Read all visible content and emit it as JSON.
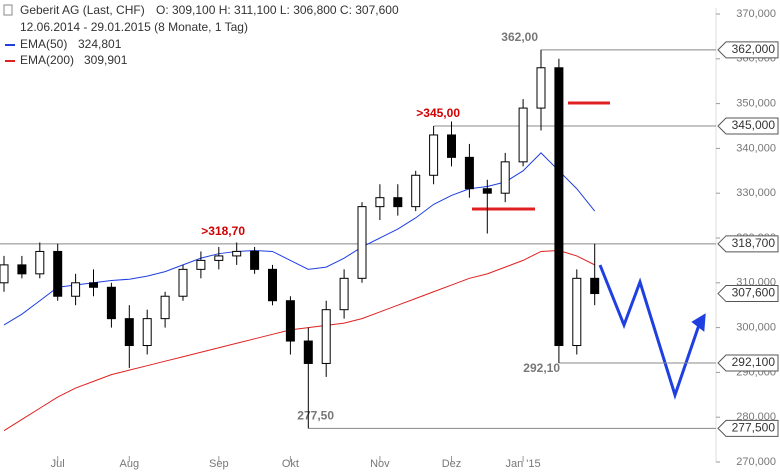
{
  "chart_data": {
    "type": "candlestick",
    "title": "Geberit AG (Last, CHF)",
    "ohlc_summary": "O: 309,100  H: 311,100  L: 306,800  C: 307,600",
    "subtitle": "12.06.2014 - 29.01.2015 (8 Monate, 1 Tag)",
    "categories": [
      null,
      null,
      null,
      "Jul",
      null,
      null,
      null,
      "Aug",
      null,
      null,
      null,
      null,
      "Sep",
      null,
      null,
      null,
      "Okt",
      null,
      null,
      null,
      null,
      "Nov",
      null,
      null,
      null,
      "Dez",
      null,
      null,
      null,
      "Jan '15",
      null,
      null,
      null,
      null
    ],
    "open": [
      310,
      314,
      312,
      317,
      307,
      310,
      309,
      302,
      296,
      302,
      307,
      313,
      315,
      316,
      317,
      313,
      306,
      297,
      292,
      304,
      311,
      327,
      329,
      327,
      334,
      343,
      338,
      331,
      330,
      337,
      349,
      358,
      296,
      311
    ],
    "high": [
      316,
      316,
      319,
      318.7,
      312,
      313,
      310,
      305,
      304,
      308,
      314,
      317,
      318,
      319,
      318,
      314,
      307,
      300,
      306,
      313,
      328,
      332,
      332,
      335,
      345,
      346,
      341,
      333,
      339,
      351,
      362,
      360,
      313,
      318.7
    ],
    "low": [
      308,
      311,
      311,
      306,
      305,
      307,
      300,
      291,
      294,
      300,
      306,
      311,
      313,
      314,
      312,
      305,
      294,
      277.5,
      289,
      302,
      310,
      324,
      325,
      326,
      332,
      336,
      329,
      321,
      328,
      336,
      344,
      292.1,
      294,
      305
    ],
    "close": [
      314,
      312,
      317,
      307,
      310,
      309,
      302,
      296,
      302,
      307,
      313,
      315,
      316,
      317,
      313,
      306,
      297,
      292,
      304,
      311,
      327,
      329,
      327,
      334,
      343,
      338,
      331,
      330,
      337,
      349,
      358,
      296,
      311,
      307.6
    ],
    "series": [
      {
        "name": "EMA(50)",
        "legend_value": "324,801",
        "color": "#1f3fe0",
        "values": [
          300.6,
          303,
          306,
          309,
          309.5,
          310,
          310.5,
          310.8,
          311.5,
          312.5,
          314,
          315.5,
          316.5,
          317,
          317.2,
          317,
          315,
          313,
          313.5,
          315.5,
          318,
          320,
          322,
          324.5,
          327.5,
          329.5,
          331,
          331.5,
          332.5,
          335,
          339,
          335,
          331,
          326
        ]
      },
      {
        "name": "EMA(200)",
        "legend_value": "309,901",
        "color": "#e02020",
        "values": [
          277,
          279.5,
          282,
          284.5,
          286.5,
          288,
          289.5,
          290.5,
          291.5,
          292.5,
          293.5,
          294.5,
          295.5,
          296.5,
          297.5,
          298.5,
          299.5,
          300,
          300.5,
          301,
          302,
          303.5,
          305,
          306.5,
          308,
          309.5,
          311,
          312,
          313.5,
          315,
          317,
          317.2,
          316,
          314
        ]
      }
    ],
    "levels": [
      {
        "value": 362,
        "label": "362,000",
        "annotation": "362,00",
        "color": "#777"
      },
      {
        "value": 345,
        "label": "345,000",
        "annotation": ">345,00",
        "color": "#d00000"
      },
      {
        "value": 318.7,
        "label": "318,700",
        "annotation": ">318,70",
        "color": "#d00000"
      },
      {
        "value": 292.1,
        "label": "292,100",
        "annotation": "292,10",
        "color": "#777"
      },
      {
        "value": 277.5,
        "label": "277,500",
        "annotation": "277,50",
        "color": "#777"
      }
    ],
    "last_price": {
      "value": 307.6,
      "label": "307,600"
    },
    "ylim": [
      270,
      370
    ],
    "yticks": [
      {
        "value": 270,
        "label": "270,000"
      },
      {
        "value": 280,
        "label": "280,000"
      },
      {
        "value": 290,
        "label": "290,000"
      },
      {
        "value": 300,
        "label": "300,000"
      },
      {
        "value": 310,
        "label": "310,000"
      },
      {
        "value": 320,
        "label": "320,000"
      },
      {
        "value": 330,
        "label": "330,000"
      },
      {
        "value": 340,
        "label": "340,000"
      },
      {
        "value": 350,
        "label": "350,000"
      },
      {
        "value": 360,
        "label": "360,000"
      },
      {
        "value": 370,
        "label": "370,000"
      }
    ]
  }
}
